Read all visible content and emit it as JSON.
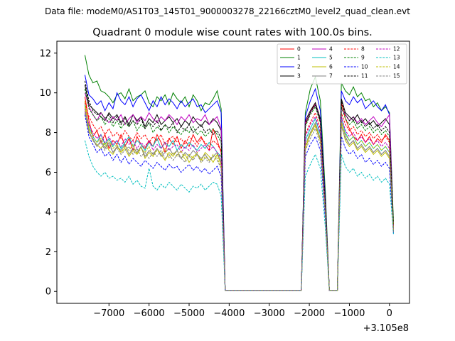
{
  "chart_data": {
    "type": "line",
    "suptitle": "Data file: modeM0/AS1T03_145T01_9000003278_22166cztM0_level2_quad_clean.evt",
    "title": "Quadrant 0 module wise count rates with 100.0s bins.",
    "xlabel": "",
    "ylabel": "",
    "x_offset_label": "+3.105e8",
    "xlim": [
      -8300,
      500
    ],
    "ylim": [
      -0.6,
      12.6
    ],
    "x_ticks": [
      -7000,
      -6000,
      -5000,
      -4000,
      -3000,
      -2000,
      -1000,
      0
    ],
    "x_tick_labels": [
      "−7000",
      "−6000",
      "−5000",
      "−4000",
      "−3000",
      "−2000",
      "−1000",
      "0"
    ],
    "y_ticks": [
      0,
      2,
      4,
      6,
      8,
      10,
      12
    ],
    "y_tick_labels": [
      "0",
      "2",
      "4",
      "6",
      "8",
      "10",
      "12"
    ],
    "legend_position": "top-right",
    "segments": [
      {
        "x_start": -7600,
        "x_end": -4200
      },
      {
        "x_start": -2100,
        "x_end": -1600
      },
      {
        "x_start": -1200,
        "x_end": 100
      }
    ],
    "gap_value": 0.05,
    "series": [
      {
        "name": "0",
        "color": "#ff0000",
        "dashed": false,
        "seg_values": [
          [
            9.8,
            8.6,
            7.8,
            8.1,
            7.5,
            7.9,
            7.2,
            7.6,
            7.4,
            7.9,
            7.3,
            7.7,
            7.1,
            7.8,
            7.4,
            7.2,
            7.6,
            7.3,
            7.9,
            7.5,
            7.0,
            7.7,
            7.4,
            7.8,
            7.2,
            7.6,
            7.3,
            7.9,
            7.5,
            7.8,
            7.4,
            7.1,
            8.2,
            7.6,
            7.0
          ],
          [
            8.4,
            9.0,
            9.5,
            8.5,
            4.5
          ],
          [
            9.5,
            8.7,
            8.2,
            7.8,
            7.6,
            7.9,
            7.5,
            7.8,
            7.4,
            7.7,
            7.5,
            7.9,
            7.6,
            3.3
          ]
        ]
      },
      {
        "name": "1",
        "color": "#008000",
        "dashed": false,
        "seg_values": [
          [
            11.9,
            10.9,
            10.5,
            10.6,
            10.1,
            10.0,
            9.8,
            9.5,
            9.9,
            10.0,
            9.7,
            10.2,
            9.6,
            9.8,
            9.9,
            10.1,
            9.5,
            9.3,
            9.8,
            9.6,
            9.9,
            9.4,
            10.0,
            9.7,
            9.5,
            9.8,
            9.3,
            9.9,
            9.6,
            9.1,
            9.5,
            9.4,
            9.7,
            10.1,
            9.2
          ],
          [
            9.0,
            10.2,
            10.8,
            9.6,
            5.0
          ],
          [
            10.5,
            10.1,
            9.9,
            10.3,
            9.8,
            10.0,
            9.6,
            9.7,
            9.3,
            9.5,
            9.1,
            9.3,
            9.0,
            3.5
          ]
        ]
      },
      {
        "name": "2",
        "color": "#0000ff",
        "dashed": false,
        "seg_values": [
          [
            10.9,
            9.9,
            9.7,
            9.4,
            9.6,
            9.1,
            9.5,
            9.2,
            10.0,
            9.6,
            9.4,
            9.8,
            9.3,
            9.7,
            9.9,
            9.5,
            9.1,
            9.6,
            9.3,
            9.8,
            9.4,
            9.7,
            9.5,
            9.2,
            9.6,
            9.3,
            9.5,
            9.7,
            9.3,
            9.4,
            9.0,
            9.2,
            9.4,
            9.6,
            9.0
          ],
          [
            8.8,
            9.6,
            10.2,
            9.1,
            4.6
          ],
          [
            10.1,
            9.6,
            9.4,
            9.8,
            9.5,
            9.7,
            9.2,
            9.4,
            9.6,
            9.3,
            9.1,
            9.4,
            8.9,
            3.1
          ]
        ]
      },
      {
        "name": "3",
        "color": "#000000",
        "dashed": false,
        "seg_values": [
          [
            10.4,
            9.4,
            9.2,
            9.0,
            8.8,
            8.6,
            9.0,
            8.7,
            8.9,
            8.5,
            8.8,
            8.4,
            8.9,
            8.6,
            8.8,
            8.3,
            8.7,
            8.5,
            8.9,
            8.4,
            8.6,
            8.8,
            8.5,
            8.7,
            8.3,
            8.6,
            8.4,
            8.8,
            8.5,
            8.3,
            8.6,
            8.4,
            8.7,
            8.5,
            8.1
          ],
          [
            8.6,
            9.1,
            9.5,
            8.7,
            4.4
          ],
          [
            9.7,
            9.0,
            8.8,
            8.6,
            8.9,
            8.5,
            8.7,
            8.4,
            8.6,
            8.3,
            8.5,
            8.7,
            8.4,
            3.2
          ]
        ]
      },
      {
        "name": "4",
        "color": "#bf00bf",
        "dashed": false,
        "seg_values": [
          [
            10.0,
            9.3,
            8.9,
            8.6,
            9.0,
            8.7,
            8.5,
            8.8,
            8.6,
            8.9,
            8.4,
            8.7,
            8.9,
            8.5,
            8.8,
            8.6,
            9.0,
            8.7,
            8.5,
            8.8,
            8.6,
            8.9,
            8.7,
            8.4,
            8.8,
            8.6,
            8.9,
            8.5,
            8.7,
            8.6,
            8.9,
            8.4,
            8.6,
            8.8,
            8.2
          ],
          [
            8.5,
            9.0,
            9.4,
            8.6,
            4.3
          ],
          [
            9.2,
            8.9,
            8.6,
            8.8,
            8.5,
            8.7,
            8.4,
            8.6,
            8.8,
            8.5,
            8.3,
            8.6,
            8.9,
            3.0
          ]
        ]
      },
      {
        "name": "5",
        "color": "#00bfbf",
        "dashed": false,
        "seg_values": [
          [
            9.4,
            8.3,
            7.8,
            7.5,
            7.9,
            7.4,
            7.7,
            7.3,
            7.6,
            7.2,
            7.5,
            7.8,
            7.3,
            7.6,
            7.4,
            7.1,
            7.5,
            7.3,
            7.7,
            7.2,
            7.5,
            7.3,
            7.6,
            7.1,
            7.4,
            7.2,
            7.5,
            7.3,
            7.1,
            7.4,
            7.2,
            7.5,
            7.3,
            7.0,
            6.8
          ],
          [
            7.6,
            8.2,
            8.7,
            7.9,
            4.0
          ],
          [
            8.8,
            8.0,
            7.6,
            7.8,
            7.4,
            7.6,
            7.3,
            7.5,
            7.2,
            7.4,
            7.1,
            7.3,
            7.0,
            3.0
          ]
        ]
      },
      {
        "name": "6",
        "color": "#bfbf00",
        "dashed": false,
        "seg_values": [
          [
            9.6,
            8.1,
            7.6,
            7.4,
            7.2,
            7.5,
            7.1,
            6.9,
            7.3,
            7.0,
            7.2,
            6.8,
            7.1,
            6.9,
            7.3,
            6.7,
            7.0,
            6.8,
            7.2,
            6.9,
            6.6,
            7.0,
            6.8,
            7.1,
            6.7,
            6.9,
            6.5,
            6.8,
            6.9,
            6.6,
            7.0,
            6.8,
            6.5,
            6.9,
            6.4
          ],
          [
            7.2,
            7.9,
            8.4,
            7.6,
            3.9
          ],
          [
            8.4,
            7.6,
            7.3,
            7.5,
            7.1,
            7.3,
            7.0,
            7.2,
            6.9,
            7.1,
            6.8,
            7.0,
            6.7,
            3.0
          ]
        ]
      },
      {
        "name": "7",
        "color": "#808080",
        "dashed": false,
        "seg_values": [
          [
            9.1,
            8.0,
            7.7,
            7.3,
            7.6,
            7.2,
            7.5,
            7.0,
            7.3,
            7.1,
            7.4,
            6.9,
            7.2,
            7.0,
            7.3,
            6.8,
            7.1,
            6.9,
            7.2,
            6.8,
            7.0,
            7.2,
            6.9,
            7.1,
            6.7,
            7.0,
            6.8,
            7.1,
            6.9,
            6.7,
            6.9,
            6.6,
            6.8,
            7.0,
            6.5
          ],
          [
            7.4,
            8.0,
            8.5,
            7.7,
            3.9
          ],
          [
            8.6,
            7.8,
            7.4,
            7.6,
            7.2,
            7.4,
            7.1,
            7.3,
            7.0,
            7.2,
            6.9,
            7.1,
            6.8,
            3.0
          ]
        ]
      },
      {
        "name": "8",
        "color": "#ff0000",
        "dashed": true,
        "seg_values": [
          [
            9.5,
            8.8,
            8.4,
            8.1,
            8.3,
            7.9,
            8.2,
            7.8,
            8.0,
            7.7,
            8.1,
            7.8,
            7.6,
            8.0,
            7.7,
            7.9,
            7.5,
            7.8,
            7.6,
            7.9,
            7.4,
            7.7,
            7.8,
            7.5,
            7.7,
            7.4,
            7.8,
            7.6,
            7.3,
            7.7,
            7.5,
            7.3,
            7.6,
            7.4,
            7.1
          ],
          [
            7.9,
            8.5,
            9.0,
            8.2,
            4.1
          ],
          [
            9.0,
            8.4,
            8.1,
            8.3,
            7.9,
            8.1,
            7.8,
            8.0,
            7.7,
            7.9,
            7.6,
            7.8,
            7.5,
            3.3
          ]
        ]
      },
      {
        "name": "9",
        "color": "#008000",
        "dashed": true,
        "seg_values": [
          [
            10.2,
            9.2,
            8.9,
            8.6,
            8.8,
            8.4,
            8.7,
            8.3,
            8.6,
            8.2,
            8.5,
            8.3,
            8.6,
            8.1,
            8.4,
            8.2,
            8.5,
            8.0,
            8.3,
            8.1,
            8.4,
            8.0,
            8.3,
            8.1,
            7.9,
            8.2,
            8.0,
            8.3,
            7.9,
            8.1,
            7.8,
            8.0,
            8.2,
            7.9,
            7.5
          ],
          [
            8.3,
            8.9,
            9.3,
            8.5,
            4.2
          ],
          [
            9.3,
            8.7,
            8.4,
            8.6,
            8.2,
            8.4,
            8.1,
            8.3,
            8.0,
            8.2,
            7.9,
            8.1,
            7.8,
            3.4
          ]
        ]
      },
      {
        "name": "10",
        "color": "#0000ff",
        "dashed": true,
        "seg_values": [
          [
            8.9,
            7.8,
            7.4,
            7.0,
            7.2,
            6.8,
            7.0,
            6.6,
            6.9,
            6.5,
            6.8,
            6.4,
            6.7,
            6.5,
            6.3,
            6.6,
            6.4,
            6.2,
            6.5,
            6.3,
            6.1,
            6.4,
            6.2,
            6.3,
            6.0,
            6.2,
            6.4,
            6.1,
            6.3,
            6.0,
            6.2,
            5.9,
            6.1,
            6.3,
            5.8
          ],
          [
            6.8,
            7.4,
            7.8,
            7.1,
            3.6
          ],
          [
            7.8,
            7.2,
            6.9,
            7.1,
            6.7,
            6.9,
            6.5,
            6.7,
            6.4,
            6.6,
            6.3,
            6.5,
            6.2,
            2.9
          ]
        ]
      },
      {
        "name": "11",
        "color": "#000000",
        "dashed": true,
        "seg_values": [
          [
            10.6,
            9.6,
            9.1,
            8.9,
            9.0,
            8.7,
            8.9,
            8.5,
            8.8,
            8.4,
            8.7,
            8.3,
            8.6,
            8.4,
            8.7,
            8.2,
            8.5,
            8.3,
            8.6,
            8.1,
            8.4,
            8.2,
            8.5,
            8.0,
            8.3,
            8.1,
            8.4,
            8.0,
            8.2,
            8.4,
            8.0,
            8.2,
            7.9,
            8.1,
            7.7
          ],
          [
            8.4,
            9.0,
            9.4,
            8.6,
            4.3
          ],
          [
            9.6,
            8.9,
            8.6,
            8.8,
            8.4,
            8.6,
            8.3,
            8.5,
            8.2,
            8.4,
            8.1,
            8.3,
            8.0,
            3.4
          ]
        ]
      },
      {
        "name": "12",
        "color": "#bf00bf",
        "dashed": true,
        "seg_values": [
          [
            9.2,
            8.4,
            8.0,
            7.7,
            7.9,
            7.5,
            7.8,
            7.4,
            7.6,
            7.3,
            7.7,
            7.4,
            7.6,
            7.2,
            7.5,
            7.3,
            7.6,
            7.1,
            7.4,
            7.2,
            7.5,
            7.1,
            7.3,
            7.4,
            7.0,
            7.3,
            7.1,
            7.4,
            7.0,
            7.2,
            7.4,
            7.1,
            7.3,
            7.0,
            6.7
          ],
          [
            7.8,
            8.4,
            8.8,
            8.0,
            4.0
          ],
          [
            8.8,
            8.1,
            7.8,
            8.0,
            7.6,
            7.8,
            7.5,
            7.7,
            7.4,
            7.6,
            7.3,
            7.5,
            7.2,
            3.1
          ]
        ]
      },
      {
        "name": "13",
        "color": "#00bfbf",
        "dashed": true,
        "seg_values": [
          [
            7.6,
            6.8,
            6.3,
            6.0,
            5.8,
            6.0,
            5.7,
            5.8,
            5.6,
            5.7,
            5.5,
            5.8,
            5.4,
            5.6,
            5.3,
            5.2,
            6.2,
            5.3,
            5.1,
            5.4,
            5.2,
            5.5,
            5.3,
            5.1,
            5.4,
            5.2,
            5.0,
            5.3,
            5.2,
            5.4,
            5.1,
            5.3,
            5.5,
            5.4,
            4.8
          ],
          [
            5.8,
            6.4,
            6.9,
            6.2,
            3.2
          ],
          [
            6.9,
            6.3,
            6.0,
            6.2,
            5.8,
            6.0,
            5.7,
            5.9,
            5.6,
            5.8,
            5.5,
            5.7,
            5.4,
            2.9
          ]
        ]
      },
      {
        "name": "14",
        "color": "#bfbf00",
        "dashed": true,
        "seg_values": [
          [
            9.3,
            8.2,
            7.8,
            7.5,
            7.7,
            7.3,
            7.6,
            7.2,
            7.4,
            7.0,
            7.3,
            7.1,
            7.4,
            6.9,
            7.2,
            7.0,
            7.3,
            6.8,
            7.1,
            6.9,
            7.2,
            6.7,
            7.0,
            6.8,
            7.1,
            6.6,
            6.9,
            6.7,
            7.0,
            6.5,
            6.8,
            6.6,
            6.9,
            6.7,
            6.3
          ],
          [
            7.3,
            7.9,
            8.3,
            7.6,
            3.9
          ],
          [
            8.5,
            7.9,
            7.6,
            7.8,
            7.4,
            7.6,
            7.3,
            7.5,
            7.2,
            7.4,
            7.1,
            7.3,
            7.0,
            3.1
          ]
        ]
      },
      {
        "name": "15",
        "color": "#808080",
        "dashed": true,
        "seg_values": [
          [
            9.0,
            8.0,
            7.6,
            7.3,
            7.5,
            7.1,
            7.4,
            7.0,
            7.2,
            6.9,
            7.1,
            7.3,
            6.9,
            7.2,
            6.8,
            7.0,
            6.7,
            7.0,
            6.8,
            7.1,
            6.7,
            6.9,
            6.6,
            6.9,
            6.7,
            6.5,
            6.8,
            6.6,
            6.9,
            6.5,
            6.7,
            6.5,
            6.8,
            6.6,
            6.2
          ],
          [
            7.1,
            7.7,
            8.2,
            7.4,
            3.8
          ],
          [
            8.3,
            7.7,
            7.4,
            7.6,
            7.2,
            7.4,
            7.1,
            7.3,
            7.0,
            7.2,
            6.9,
            7.1,
            6.8,
            3.0
          ]
        ]
      }
    ]
  }
}
